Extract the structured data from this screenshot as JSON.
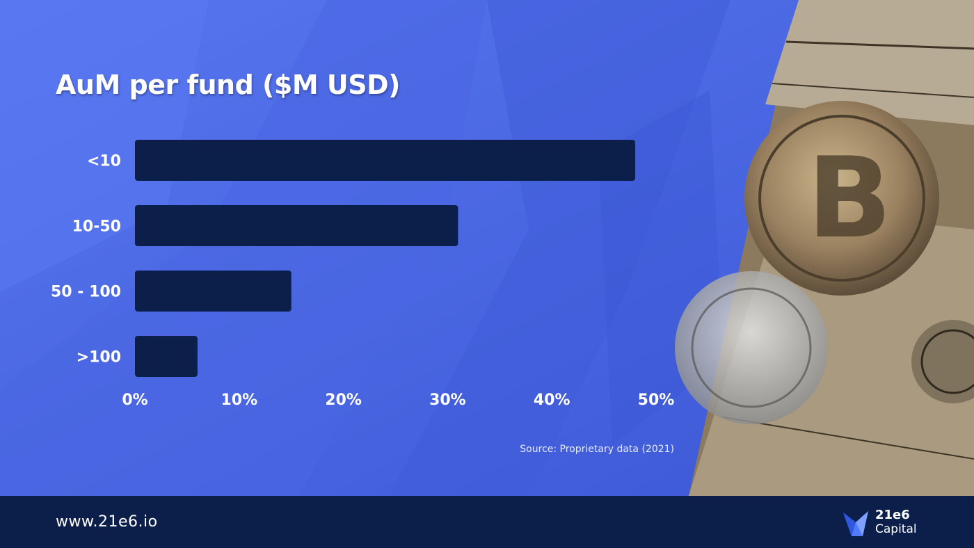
{
  "colors": {
    "slide_bg": "#4a68e6",
    "bar": "#0b1f4a",
    "text": "#ffffff",
    "footer_bg": "#0b1f4a",
    "photo_tone": "#8c7a5e"
  },
  "footer": {
    "website": "www.21e6.io",
    "brand_line1": "21e6",
    "brand_line2": "Capital",
    "brand_icon": "bird-logo-icon"
  },
  "photo": {
    "description_icon": "bitcoin-coins-and-dollar-bills-photo"
  },
  "chart_data": {
    "type": "bar",
    "orientation": "horizontal",
    "title": "AuM per fund ($M USD)",
    "categories": [
      "<10",
      "10-50",
      "50 - 100",
      ">100"
    ],
    "values": [
      48,
      31,
      15,
      6
    ],
    "xlim": [
      0,
      50
    ],
    "x_ticks": [
      "0%",
      "10%",
      "20%",
      "30%",
      "40%",
      "50%"
    ],
    "unit": "%",
    "grid": false,
    "legend": "none",
    "source": "Source: Proprietary data (2021)"
  }
}
